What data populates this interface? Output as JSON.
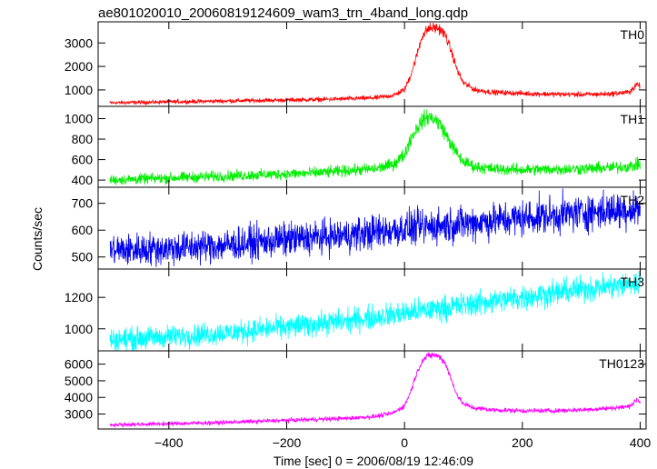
{
  "chart_data": {
    "type": "line",
    "title": "ae801020010_20060819124609_wam3_trn_4band_long.qdp",
    "xlabel": "Time [sec] 0 = 2006/08/19 12:46:09",
    "ylabel": "Counts/sec",
    "xlim": [
      -520,
      410
    ],
    "xticks": [
      -400,
      -200,
      0,
      200,
      400
    ],
    "grid": false,
    "panels": [
      {
        "name": "TH0",
        "color": "#ff0000",
        "ylim": [
          300,
          3900
        ],
        "yticks": [
          1000,
          2000,
          3000
        ],
        "x": [
          -500,
          -450,
          -400,
          -350,
          -300,
          -250,
          -200,
          -150,
          -100,
          -50,
          -20,
          0,
          10,
          20,
          30,
          40,
          50,
          60,
          70,
          80,
          90,
          100,
          120,
          150,
          200,
          250,
          300,
          350,
          380,
          390,
          395,
          400
        ],
        "values": [
          450,
          470,
          490,
          510,
          530,
          550,
          570,
          590,
          620,
          660,
          760,
          1000,
          1600,
          2400,
          3300,
          3600,
          3650,
          3600,
          3300,
          2600,
          1800,
          1300,
          1000,
          900,
          850,
          820,
          800,
          830,
          900,
          1100,
          1250,
          1150
        ],
        "noise": 40
      },
      {
        "name": "TH1",
        "color": "#00ee00",
        "ylim": [
          330,
          1120
        ],
        "yticks": [
          400,
          600,
          800,
          1000
        ],
        "x": [
          -500,
          -450,
          -400,
          -350,
          -300,
          -250,
          -200,
          -150,
          -100,
          -50,
          -20,
          0,
          10,
          20,
          30,
          40,
          50,
          60,
          70,
          80,
          90,
          100,
          120,
          150,
          200,
          250,
          300,
          350,
          390,
          400
        ],
        "values": [
          400,
          410,
          420,
          430,
          440,
          450,
          460,
          470,
          490,
          510,
          550,
          650,
          800,
          900,
          980,
          1020,
          1000,
          950,
          850,
          740,
          650,
          580,
          530,
          510,
          500,
          505,
          510,
          520,
          540,
          560
        ],
        "noise": 25
      },
      {
        "name": "TH2",
        "color": "#0000ee",
        "ylim": [
          455,
          760
        ],
        "yticks": [
          500,
          600,
          700
        ],
        "x": [
          -500,
          -400,
          -300,
          -200,
          -100,
          0,
          100,
          200,
          300,
          400
        ],
        "values": [
          525,
          532,
          545,
          565,
          580,
          605,
          625,
          645,
          665,
          680
        ],
        "noise": 30
      },
      {
        "name": "TH3",
        "color": "#00ffff",
        "ylim": [
          860,
          1380
        ],
        "yticks": [
          1000,
          1200
        ],
        "x": [
          -500,
          -400,
          -300,
          -200,
          -100,
          0,
          100,
          200,
          300,
          400
        ],
        "values": [
          930,
          950,
          975,
          1010,
          1050,
          1100,
          1150,
          1200,
          1250,
          1290
        ],
        "noise": 35
      },
      {
        "name": "TH0123",
        "color": "#ff00ff",
        "ylim": [
          2100,
          6800
        ],
        "yticks": [
          3000,
          4000,
          5000,
          6000
        ],
        "x": [
          -500,
          -450,
          -400,
          -350,
          -300,
          -250,
          -200,
          -150,
          -100,
          -50,
          -20,
          0,
          10,
          20,
          30,
          40,
          50,
          60,
          70,
          80,
          90,
          100,
          120,
          150,
          200,
          250,
          300,
          350,
          380,
          390,
          395,
          400
        ],
        "values": [
          2350,
          2380,
          2420,
          2460,
          2500,
          2560,
          2620,
          2680,
          2740,
          2850,
          3050,
          3500,
          4300,
          5400,
          6200,
          6500,
          6550,
          6450,
          6000,
          5000,
          4100,
          3600,
          3350,
          3250,
          3200,
          3200,
          3250,
          3350,
          3450,
          3700,
          3900,
          3700
        ],
        "noise": 60
      }
    ]
  }
}
